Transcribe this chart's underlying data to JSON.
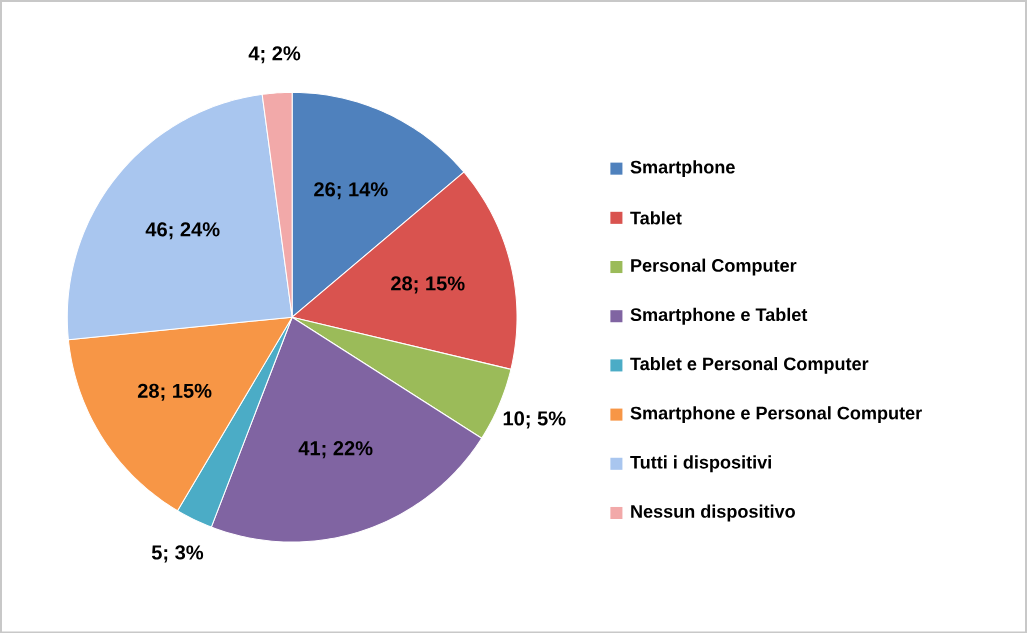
{
  "chart_data": {
    "type": "pie",
    "categories": [
      "Smartphone",
      "Tablet",
      "Personal Computer",
      "Smartphone e Tablet",
      "Tablet e Personal Computer",
      "Smartphone e Personal Computer",
      "Tutti i dispositivi",
      "Nessun dispositivo"
    ],
    "values": [
      26,
      28,
      10,
      41,
      5,
      28,
      46,
      4
    ],
    "colors": [
      "#4f81bd",
      "#d9534f",
      "#9bbb59",
      "#8064a2",
      "#4bacc6",
      "#f79646",
      "#a9c6ef",
      "#f2a9a9"
    ],
    "value_labels": [
      "26; 14%",
      "28; 15%",
      "10; 5%",
      "41; 22%",
      "5; 3%",
      "28; 15%",
      "46; 24%",
      "4; 2%"
    ],
    "legend": "right"
  }
}
